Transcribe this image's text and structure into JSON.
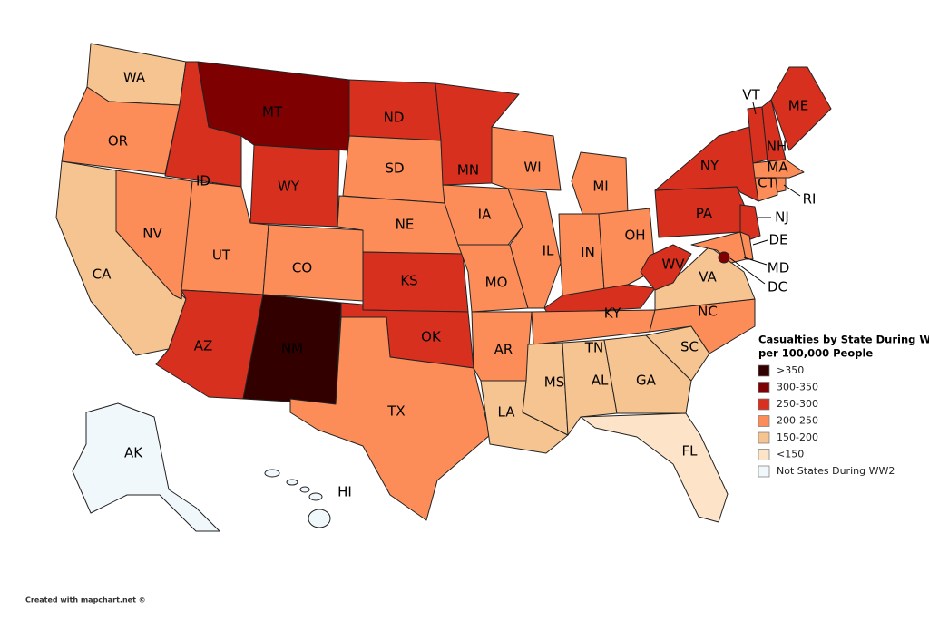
{
  "map": {
    "states": [
      {
        "label": "WA",
        "color": "#f6c490"
      },
      {
        "label": "OR",
        "color": "#fc8d59"
      },
      {
        "label": "CA",
        "color": "#f6c490"
      },
      {
        "label": "NV",
        "color": "#fc8d59"
      },
      {
        "label": "ID",
        "color": "#d7301f"
      },
      {
        "label": "MT",
        "color": "#7f0000"
      },
      {
        "label": "WY",
        "color": "#d7301f"
      },
      {
        "label": "UT",
        "color": "#fc8d59"
      },
      {
        "label": "CO",
        "color": "#fc8d59"
      },
      {
        "label": "AZ",
        "color": "#d7301f"
      },
      {
        "label": "NM",
        "color": "#330000"
      },
      {
        "label": "ND",
        "color": "#d7301f"
      },
      {
        "label": "SD",
        "color": "#fc8d59"
      },
      {
        "label": "NE",
        "color": "#fc8d59"
      },
      {
        "label": "KS",
        "color": "#d7301f"
      },
      {
        "label": "OK",
        "color": "#d7301f"
      },
      {
        "label": "TX",
        "color": "#fc8d59"
      },
      {
        "label": "MN",
        "color": "#d7301f"
      },
      {
        "label": "IA",
        "color": "#fc8d59"
      },
      {
        "label": "MO",
        "color": "#fc8d59"
      },
      {
        "label": "AR",
        "color": "#fc8d59"
      },
      {
        "label": "LA",
        "color": "#f6c490"
      },
      {
        "label": "WI",
        "color": "#fc8d59"
      },
      {
        "label": "IL",
        "color": "#fc8d59"
      },
      {
        "label": "MI",
        "color": "#fc8d59"
      },
      {
        "label": "IN",
        "color": "#fc8d59"
      },
      {
        "label": "OH",
        "color": "#fc8d59"
      },
      {
        "label": "KY",
        "color": "#d7301f"
      },
      {
        "label": "TN",
        "color": "#fc8d59"
      },
      {
        "label": "MS",
        "color": "#f6c490"
      },
      {
        "label": "AL",
        "color": "#f6c490"
      },
      {
        "label": "GA",
        "color": "#f6c490"
      },
      {
        "label": "FL",
        "color": "#fde4c8"
      },
      {
        "label": "SC",
        "color": "#f6c490"
      },
      {
        "label": "NC",
        "color": "#fc8d59"
      },
      {
        "label": "VA",
        "color": "#f6c490"
      },
      {
        "label": "WV",
        "color": "#d7301f"
      },
      {
        "label": "PA",
        "color": "#d7301f"
      },
      {
        "label": "NY",
        "color": "#d7301f"
      },
      {
        "label": "NJ",
        "color": "#d7301f"
      },
      {
        "label": "MD",
        "color": "#fc8d59"
      },
      {
        "label": "DE",
        "color": "#fc8d59"
      },
      {
        "label": "VT",
        "color": "#d7301f"
      },
      {
        "label": "NH",
        "color": "#d7301f"
      },
      {
        "label": "ME",
        "color": "#d7301f"
      },
      {
        "label": "MA",
        "color": "#fc8d59"
      },
      {
        "label": "CT",
        "color": "#fc8d59"
      },
      {
        "label": "RI",
        "color": "#fc8d59"
      },
      {
        "label": "DC",
        "color": "#7f0000"
      },
      {
        "label": "AK",
        "color": "#f0f8fb"
      },
      {
        "label": "HI",
        "color": "#f0f8fb"
      }
    ],
    "legend": {
      "title": "Casualties by State During WW",
      "subtitle": "per 100,000 People",
      "items": [
        {
          "label": ">350",
          "color": "#330000"
        },
        {
          "label": "300-350",
          "color": "#7f0000"
        },
        {
          "label": "250-300",
          "color": "#d7301f"
        },
        {
          "label": "200-250",
          "color": "#fc8d59"
        },
        {
          "label": "150-200",
          "color": "#f6c490"
        },
        {
          "label": "<150",
          "color": "#fde4c8"
        },
        {
          "label": "Not States During WW2",
          "color": "#f0f8fb"
        }
      ]
    }
  },
  "credit": "Created with mapchart.net ©"
}
